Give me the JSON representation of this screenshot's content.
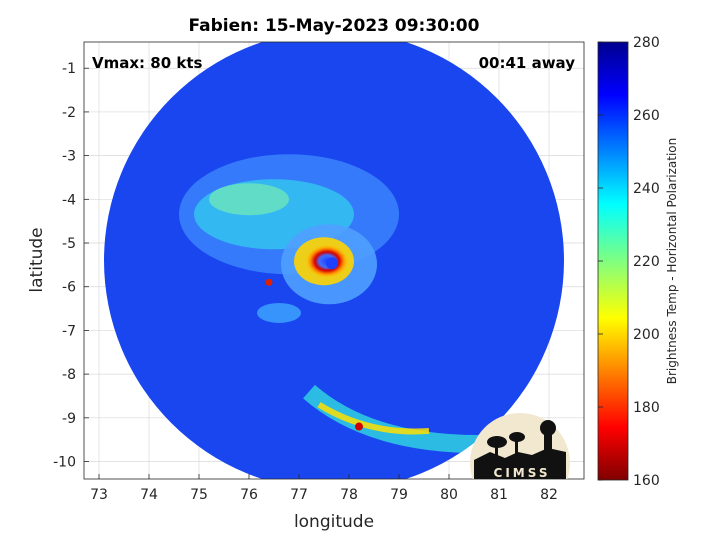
{
  "chart_data": {
    "type": "heatmap",
    "title": "Fabien: 15-May-2023 09:30:00",
    "xlabel": "longitude",
    "ylabel": "latitude",
    "xlim": [
      72.7,
      82.7
    ],
    "ylim": [
      -10.4,
      -0.4
    ],
    "xticks": [
      73,
      74,
      75,
      76,
      77,
      78,
      79,
      80,
      81,
      82
    ],
    "yticks": [
      -1,
      -2,
      -3,
      -4,
      -5,
      -6,
      -7,
      -8,
      -9,
      -10
    ],
    "grid": true,
    "colorbar": {
      "label": "Brightness Temp - Horizontal Polarization",
      "range": [
        160,
        280
      ],
      "ticks": [
        280,
        260,
        240,
        220,
        200,
        180,
        160
      ],
      "colormap": "jet"
    },
    "annotations": {
      "vmax": "Vmax: 80 kts",
      "time_away": "00:41 away"
    },
    "swath": {
      "center_lon": 77.7,
      "center_lat": -5.4,
      "radius_deg": 4.6
    },
    "storm_center": {
      "lon": 77.6,
      "lat": -5.6
    },
    "logo_text": "CIMSS"
  }
}
